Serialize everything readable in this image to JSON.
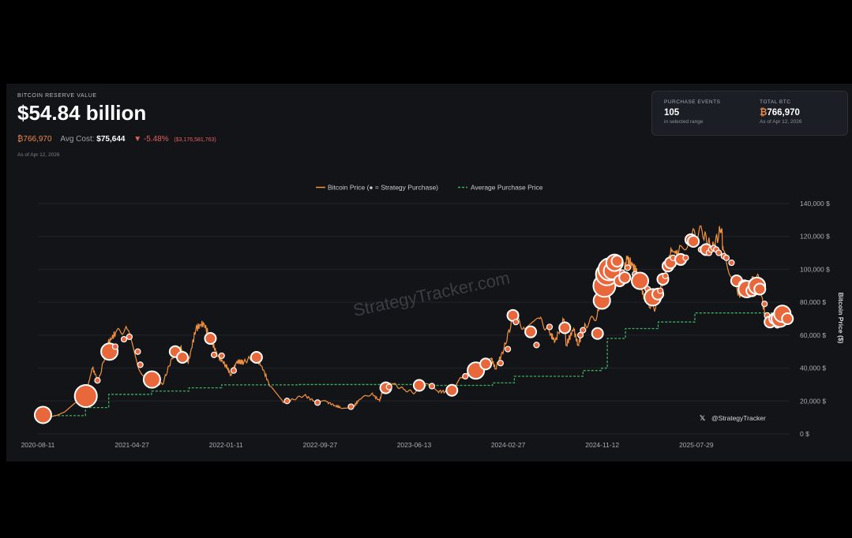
{
  "header": {
    "label": "BITCOIN RESERVE VALUE",
    "value": "$54.84 billion",
    "btc_amount": "₿766,970",
    "avg_cost_label": "Avg Cost:",
    "avg_cost": "$75,644",
    "change_pct": "▼ -5.48%",
    "change_usd": "($3,176,581,763)",
    "as_of": "As of Apr 12, 2026"
  },
  "stats": {
    "events_label": "PURCHASE EVENTS",
    "events_value": "105",
    "events_sub": "in selected range",
    "btc_label": "TOTAL BTC",
    "btc_value": "766,970",
    "btc_symbol": "₿",
    "btc_sub": "As of Apr 12, 2026"
  },
  "watermark": "StrategyTracker.com",
  "credit": "@StrategyTracker",
  "colors": {
    "price_line": "#f0913f",
    "avg_line": "#3fae5e",
    "bubble_fill": "#e8683c",
    "bubble_stroke": "#ffffff",
    "panel": "#121418"
  },
  "chart_data": {
    "type": "line",
    "legend": [
      "Bitcoin Price (● = Strategy Purchase)",
      "Average Purchase Price"
    ],
    "legend_position": "top-center",
    "ylabel": "Bitcoin Price ($)",
    "ylim": [
      0,
      140000
    ],
    "yticks": [
      "140,000 $",
      "120,000 $",
      "100,000 $",
      "80,000 $",
      "60,000 $",
      "40,000 $",
      "20,000 $",
      "0 $"
    ],
    "ytick_values": [
      140000,
      120000,
      100000,
      80000,
      60000,
      40000,
      20000,
      0
    ],
    "xlim": [
      "2020-08-11",
      "2026-04-12"
    ],
    "xticks": [
      "2020-08-11",
      "2021-04-27",
      "2022-01-11",
      "2022-09-27",
      "2023-06-13",
      "2024-02-27",
      "2024-11-12",
      "2025-07-29"
    ],
    "grid": "horizontal",
    "series": [
      {
        "name": "Bitcoin Price",
        "x": [
          "2020-08-11",
          "2020-09-15",
          "2020-10-20",
          "2020-11-25",
          "2020-12-20",
          "2021-01-08",
          "2021-01-25",
          "2021-02-20",
          "2021-03-13",
          "2021-04-14",
          "2021-05-19",
          "2021-06-22",
          "2021-07-20",
          "2021-08-15",
          "2021-09-07",
          "2021-09-29",
          "2021-10-20",
          "2021-11-10",
          "2021-12-01",
          "2021-12-20",
          "2022-01-10",
          "2022-01-24",
          "2022-02-10",
          "2022-03-01",
          "2022-03-29",
          "2022-04-20",
          "2022-05-12",
          "2022-06-18",
          "2022-07-15",
          "2022-08-15",
          "2022-09-10",
          "2022-10-15",
          "2022-11-09",
          "2022-11-21",
          "2022-12-28",
          "2023-01-14",
          "2023-02-16",
          "2023-03-10",
          "2023-03-20",
          "2023-04-14",
          "2023-05-15",
          "2023-06-15",
          "2023-07-13",
          "2023-08-17",
          "2023-09-11",
          "2023-10-23",
          "2023-11-15",
          "2023-12-05",
          "2024-01-11",
          "2024-01-23",
          "2024-02-15",
          "2024-03-13",
          "2024-04-13",
          "2024-05-20",
          "2024-06-20",
          "2024-07-05",
          "2024-07-29",
          "2024-08-05",
          "2024-08-25",
          "2024-09-06",
          "2024-09-27",
          "2024-10-29",
          "2024-11-12",
          "2024-11-22",
          "2024-12-17",
          "2024-12-30",
          "2025-01-20",
          "2025-02-03",
          "2025-02-20",
          "2025-03-10",
          "2025-04-08",
          "2025-05-01",
          "2025-05-22",
          "2025-06-10",
          "2025-07-14",
          "2025-08-14",
          "2025-09-10",
          "2025-10-06",
          "2025-10-11",
          "2025-11-21",
          "2025-12-15",
          "2026-01-14",
          "2026-02-05",
          "2026-03-01",
          "2026-04-12"
        ],
        "y": [
          11500,
          10500,
          13000,
          19000,
          23500,
          40000,
          32000,
          55000,
          61500,
          63500,
          38000,
          32000,
          30000,
          46000,
          52500,
          43000,
          64000,
          67500,
          57000,
          47000,
          42000,
          36000,
          44000,
          43500,
          47500,
          41000,
          29000,
          19000,
          21000,
          23500,
          20000,
          19500,
          17000,
          16000,
          16500,
          21000,
          24500,
          20000,
          28000,
          30500,
          27000,
          25000,
          30500,
          26000,
          25500,
          34000,
          37000,
          42000,
          46000,
          39500,
          51500,
          72000,
          63500,
          70500,
          61500,
          56500,
          69000,
          54000,
          64000,
          54000,
          66000,
          72000,
          88000,
          99000,
          106500,
          92000,
          106000,
          102000,
          96000,
          80500,
          76500,
          96500,
          111000,
          110000,
          120000,
          123000,
          112000,
          124500,
          112000,
          84000,
          88000,
          97000,
          70000,
          67000,
          69500
        ]
      },
      {
        "name": "Average Purchase Price",
        "x": [
          "2020-08-11",
          "2020-12-20",
          "2021-02-22",
          "2021-06-20",
          "2021-10-01",
          "2021-12-30",
          "2022-08-01",
          "2023-06-20",
          "2024-01-15",
          "2024-03-15",
          "2024-09-20",
          "2024-11-11",
          "2024-11-26",
          "2025-01-15",
          "2025-04-15",
          "2025-07-25",
          "2026-04-12"
        ],
        "y": [
          11100,
          16000,
          24000,
          26000,
          28000,
          29800,
          30000,
          29500,
          31000,
          35000,
          38500,
          40000,
          58000,
          64000,
          68000,
          73500,
          76000
        ]
      }
    ],
    "purchases": [
      {
        "date": "2020-08-25",
        "price": 11500,
        "size": "large"
      },
      {
        "date": "2020-12-21",
        "price": 23000,
        "size": "xlarge"
      },
      {
        "date": "2021-01-22",
        "price": 32500,
        "size": "small"
      },
      {
        "date": "2021-02-24",
        "price": 50000,
        "size": "large"
      },
      {
        "date": "2021-03-12",
        "price": 53000,
        "size": "small"
      },
      {
        "date": "2021-04-05",
        "price": 57500,
        "size": "small"
      },
      {
        "date": "2021-04-20",
        "price": 59000,
        "size": "small"
      },
      {
        "date": "2021-05-13",
        "price": 50000,
        "size": "small"
      },
      {
        "date": "2021-05-20",
        "price": 42000,
        "size": "small"
      },
      {
        "date": "2021-06-21",
        "price": 33000,
        "size": "large"
      },
      {
        "date": "2021-08-24",
        "price": 50000,
        "size": "medium"
      },
      {
        "date": "2021-09-13",
        "price": 46500,
        "size": "medium"
      },
      {
        "date": "2021-11-29",
        "price": 58000,
        "size": "medium"
      },
      {
        "date": "2021-12-09",
        "price": 48000,
        "size": "small"
      },
      {
        "date": "2021-12-30",
        "price": 47500,
        "size": "small"
      },
      {
        "date": "2022-02-01",
        "price": 38500,
        "size": "small"
      },
      {
        "date": "2022-04-05",
        "price": 46500,
        "size": "medium"
      },
      {
        "date": "2022-06-28",
        "price": 20000,
        "size": "small"
      },
      {
        "date": "2022-09-20",
        "price": 19000,
        "size": "small"
      },
      {
        "date": "2022-12-21",
        "price": 16500,
        "size": "small"
      },
      {
        "date": "2023-03-27",
        "price": 28000,
        "size": "medium"
      },
      {
        "date": "2023-04-05",
        "price": 28500,
        "size": "small"
      },
      {
        "date": "2023-06-27",
        "price": 29500,
        "size": "medium"
      },
      {
        "date": "2023-08-01",
        "price": 29000,
        "size": "small"
      },
      {
        "date": "2023-09-25",
        "price": 26500,
        "size": "medium"
      },
      {
        "date": "2023-11-01",
        "price": 35000,
        "size": "small"
      },
      {
        "date": "2023-11-30",
        "price": 38500,
        "size": "large"
      },
      {
        "date": "2023-12-27",
        "price": 42500,
        "size": "medium"
      },
      {
        "date": "2024-02-06",
        "price": 43000,
        "size": "small"
      },
      {
        "date": "2024-02-26",
        "price": 51500,
        "size": "small"
      },
      {
        "date": "2024-03-11",
        "price": 72000,
        "size": "medium"
      },
      {
        "date": "2024-03-19",
        "price": 68000,
        "size": "small"
      },
      {
        "date": "2024-04-29",
        "price": 62000,
        "size": "medium"
      },
      {
        "date": "2024-05-15",
        "price": 54000,
        "size": "small"
      },
      {
        "date": "2024-06-20",
        "price": 65000,
        "size": "small"
      },
      {
        "date": "2024-08-01",
        "price": 64500,
        "size": "medium"
      },
      {
        "date": "2024-09-13",
        "price": 60000,
        "size": "small"
      },
      {
        "date": "2024-09-20",
        "price": 63000,
        "size": "small"
      },
      {
        "date": "2024-10-30",
        "price": 61000,
        "size": "medium"
      },
      {
        "date": "2024-11-11",
        "price": 81000,
        "size": "large"
      },
      {
        "date": "2024-11-18",
        "price": 90000,
        "size": "xlarge"
      },
      {
        "date": "2024-11-25",
        "price": 97000,
        "size": "xlarge"
      },
      {
        "date": "2024-12-02",
        "price": 100000,
        "size": "xlarge"
      },
      {
        "date": "2024-12-09",
        "price": 99000,
        "size": "large"
      },
      {
        "date": "2024-12-16",
        "price": 104000,
        "size": "large"
      },
      {
        "date": "2024-12-23",
        "price": 105000,
        "size": "medium"
      },
      {
        "date": "2024-12-30",
        "price": 93000,
        "size": "medium"
      },
      {
        "date": "2025-01-06",
        "price": 98000,
        "size": "small"
      },
      {
        "date": "2025-01-13",
        "price": 95000,
        "size": "medium"
      },
      {
        "date": "2025-01-21",
        "price": 101000,
        "size": "small"
      },
      {
        "date": "2025-02-10",
        "price": 97000,
        "size": "small"
      },
      {
        "date": "2025-02-24",
        "price": 93000,
        "size": "large"
      },
      {
        "date": "2025-03-17",
        "price": 88000,
        "size": "small"
      },
      {
        "date": "2025-03-31",
        "price": 83000,
        "size": "large"
      },
      {
        "date": "2025-04-14",
        "price": 85000,
        "size": "medium"
      },
      {
        "date": "2025-04-21",
        "price": 87000,
        "size": "small"
      },
      {
        "date": "2025-04-28",
        "price": 94000,
        "size": "medium"
      },
      {
        "date": "2025-05-05",
        "price": 96000,
        "size": "small"
      },
      {
        "date": "2025-05-12",
        "price": 102000,
        "size": "medium"
      },
      {
        "date": "2025-05-19",
        "price": 104000,
        "size": "medium"
      },
      {
        "date": "2025-05-26",
        "price": 107000,
        "size": "small"
      },
      {
        "date": "2025-06-16",
        "price": 106000,
        "size": "medium"
      },
      {
        "date": "2025-06-30",
        "price": 107000,
        "size": "small"
      },
      {
        "date": "2025-07-14",
        "price": 118000,
        "size": "medium"
      },
      {
        "date": "2025-07-21",
        "price": 117000,
        "size": "medium"
      },
      {
        "date": "2025-08-11",
        "price": 112000,
        "size": "small"
      },
      {
        "date": "2025-08-18",
        "price": 111000,
        "size": "small"
      },
      {
        "date": "2025-08-25",
        "price": 112000,
        "size": "medium"
      },
      {
        "date": "2025-09-02",
        "price": 110000,
        "size": "small"
      },
      {
        "date": "2025-09-08",
        "price": 112000,
        "size": "small"
      },
      {
        "date": "2025-09-15",
        "price": 113000,
        "size": "small"
      },
      {
        "date": "2025-09-22",
        "price": 112000,
        "size": "small"
      },
      {
        "date": "2025-09-29",
        "price": 110000,
        "size": "small"
      },
      {
        "date": "2025-10-13",
        "price": 108000,
        "size": "small"
      },
      {
        "date": "2025-10-20",
        "price": 107000,
        "size": "small"
      },
      {
        "date": "2025-11-03",
        "price": 104000,
        "size": "small"
      },
      {
        "date": "2025-11-17",
        "price": 93000,
        "size": "medium"
      },
      {
        "date": "2025-12-01",
        "price": 91000,
        "size": "small"
      },
      {
        "date": "2025-12-08",
        "price": 90000,
        "size": "medium"
      },
      {
        "date": "2025-12-15",
        "price": 88000,
        "size": "large"
      },
      {
        "date": "2025-12-29",
        "price": 87000,
        "size": "medium"
      },
      {
        "date": "2026-01-05",
        "price": 91000,
        "size": "medium"
      },
      {
        "date": "2026-01-12",
        "price": 90000,
        "size": "large"
      },
      {
        "date": "2026-01-20",
        "price": 88000,
        "size": "medium"
      },
      {
        "date": "2026-02-02",
        "price": 79000,
        "size": "small"
      },
      {
        "date": "2026-02-09",
        "price": 72000,
        "size": "small"
      },
      {
        "date": "2026-02-17",
        "price": 68000,
        "size": "medium"
      },
      {
        "date": "2026-03-02",
        "price": 70000,
        "size": "medium"
      },
      {
        "date": "2026-03-09",
        "price": 66000,
        "size": "small"
      },
      {
        "date": "2026-03-16",
        "price": 70000,
        "size": "large"
      },
      {
        "date": "2026-03-23",
        "price": 73000,
        "size": "large"
      },
      {
        "date": "2026-04-06",
        "price": 70000,
        "size": "medium"
      }
    ]
  }
}
